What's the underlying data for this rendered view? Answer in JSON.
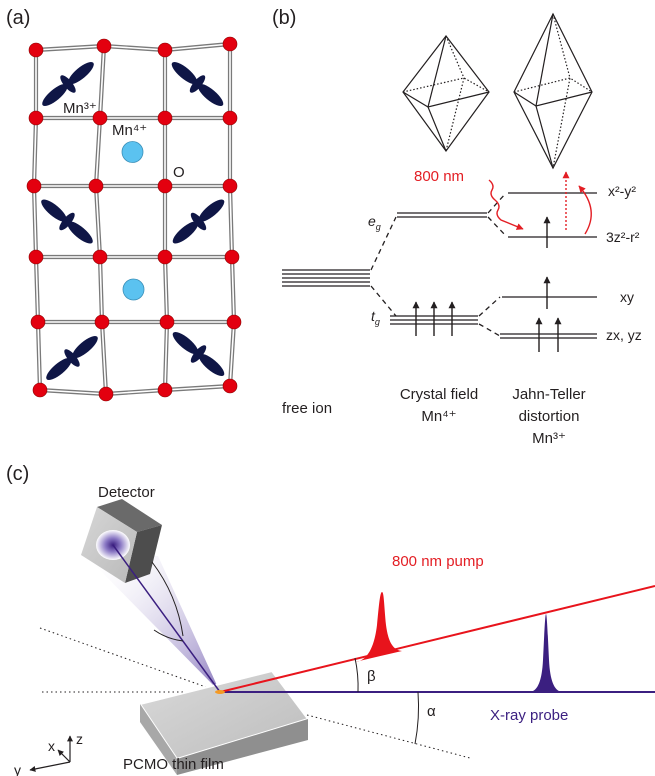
{
  "panel_a": {
    "label": "(a)",
    "atom_labels": {
      "mn3": "Mn³⁺",
      "mn4": "Mn⁴⁺",
      "oxygen": "O"
    },
    "colors": {
      "oxygen": "#e3000f",
      "mn3_orbital": "#0f1646",
      "mn4": "#5bc2f0",
      "bond": "#8c8c8c"
    }
  },
  "panel_b": {
    "label": "(b)",
    "pump_label": "800 nm",
    "eg_label": "e",
    "eg_sub": "g",
    "t2g_label": "t",
    "t2g_sub": "g",
    "levels": {
      "x2y2": "x²-y²",
      "z2r2": "3z²-r²",
      "xy": "xy",
      "zxyz": "zx, yz"
    },
    "captions": {
      "free_ion": "free ion",
      "crystal_field": [
        "Crystal field",
        "Mn⁴⁺"
      ],
      "jahn_teller": [
        "Jahn-Teller",
        "distortion",
        "Mn³⁺"
      ]
    },
    "colors": {
      "pump": "#e31e24",
      "line": "#231f20"
    }
  },
  "panel_c": {
    "label": "(c)",
    "detector": "Detector",
    "pump": "800 nm pump",
    "probe": "X-ray probe",
    "sample": "PCMO thin film",
    "angles": {
      "beta": "β",
      "alpha": "α"
    },
    "axes": {
      "x": "x",
      "y": "y",
      "z": "z"
    },
    "colors": {
      "pump": "#e8141c",
      "probe": "#3b1f80",
      "sample": "#9a9a9a"
    }
  }
}
